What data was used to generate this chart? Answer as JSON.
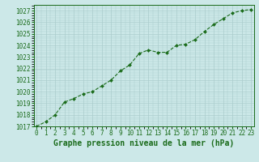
{
  "x": [
    0,
    1,
    2,
    3,
    4,
    5,
    6,
    7,
    8,
    9,
    10,
    11,
    12,
    13,
    14,
    15,
    16,
    17,
    18,
    19,
    20,
    21,
    22,
    23
  ],
  "y": [
    1017.0,
    1017.4,
    1018.0,
    1019.1,
    1019.4,
    1019.8,
    1020.0,
    1020.5,
    1021.0,
    1021.8,
    1022.3,
    1023.3,
    1023.6,
    1023.4,
    1023.4,
    1024.0,
    1024.1,
    1024.5,
    1025.2,
    1025.8,
    1026.3,
    1026.8,
    1027.0,
    1027.1
  ],
  "line_color": "#1a6b1a",
  "marker_color": "#1a6b1a",
  "bg_color": "#cce8e8",
  "grid_color": "#aacccc",
  "title": "Graphe pression niveau de la mer (hPa)",
  "ylim": [
    1017,
    1027.5
  ],
  "xlim": [
    -0.3,
    23.3
  ],
  "yticks": [
    1017,
    1018,
    1019,
    1020,
    1021,
    1022,
    1023,
    1024,
    1025,
    1026,
    1027
  ],
  "xticks": [
    0,
    1,
    2,
    3,
    4,
    5,
    6,
    7,
    8,
    9,
    10,
    11,
    12,
    13,
    14,
    15,
    16,
    17,
    18,
    19,
    20,
    21,
    22,
    23
  ],
  "tick_fontsize": 5.5,
  "title_fontsize": 7,
  "title_fontweight": "bold"
}
